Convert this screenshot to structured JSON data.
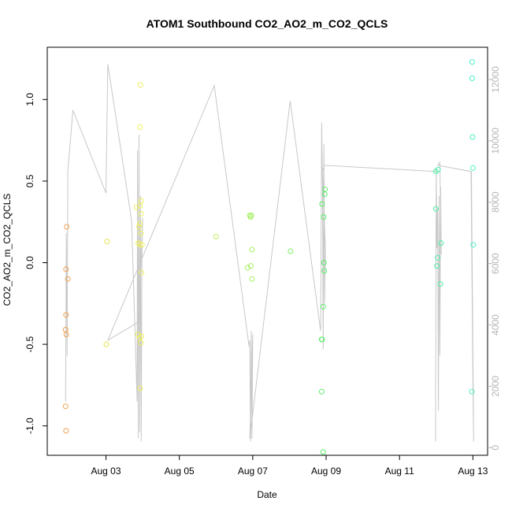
{
  "chart_data": {
    "type": "scatter",
    "title": "ATOM1 Southbound CO2_AO2_m_CO2_QCLS",
    "xlabel": "Date",
    "ylabel": "CO2_AO2_m_CO2_QCLS",
    "x_tick_labels": [
      "Aug 03",
      "Aug 05",
      "Aug 07",
      "Aug 09",
      "Aug 11",
      "Aug 13"
    ],
    "x_tick_values": [
      3,
      5,
      7,
      9,
      11,
      13
    ],
    "xlim": [
      1.4,
      13.4
    ],
    "y_tick_labels": [
      "-1.0",
      "-0.5",
      "0.0",
      "0.5",
      "1.0"
    ],
    "y_tick_values": [
      -1.0,
      -0.5,
      0.0,
      0.5,
      1.0
    ],
    "ylim": [
      -1.18,
      1.32
    ],
    "y2_tick_labels": [
      "0",
      "2000",
      "4000",
      "6000",
      "8000",
      "10000",
      "12000"
    ],
    "y2_tick_values": [
      0,
      2000,
      4000,
      6000,
      8000,
      10000,
      12000
    ],
    "y2lim": [
      -250,
      13050
    ],
    "grid": false,
    "points": [
      {
        "x": 1.93,
        "y": 0.22,
        "color": "#f0a050"
      },
      {
        "x": 1.91,
        "y": -0.04,
        "color": "#f0a050"
      },
      {
        "x": 1.96,
        "y": -0.1,
        "color": "#f0a050"
      },
      {
        "x": 1.91,
        "y": -0.32,
        "color": "#f0a050"
      },
      {
        "x": 1.9,
        "y": -0.41,
        "color": "#f0a050"
      },
      {
        "x": 1.92,
        "y": -0.44,
        "color": "#f0a050"
      },
      {
        "x": 1.9,
        "y": -0.88,
        "color": "#f0a050"
      },
      {
        "x": 1.91,
        "y": -1.03,
        "color": "#f0a050"
      },
      {
        "x": 3.03,
        "y": 0.13,
        "color": "#e6e656"
      },
      {
        "x": 3.01,
        "y": -0.5,
        "color": "#e6e656"
      },
      {
        "x": 3.94,
        "y": 1.09,
        "color": "#f0f060"
      },
      {
        "x": 3.93,
        "y": 0.83,
        "color": "#f0f060"
      },
      {
        "x": 3.96,
        "y": 0.38,
        "color": "#f0f060"
      },
      {
        "x": 3.83,
        "y": 0.34,
        "color": "#f0f060"
      },
      {
        "x": 3.93,
        "y": 0.35,
        "color": "#f0f060"
      },
      {
        "x": 3.96,
        "y": 0.3,
        "color": "#f0f060"
      },
      {
        "x": 3.92,
        "y": 0.24,
        "color": "#f0f060"
      },
      {
        "x": 3.9,
        "y": 0.22,
        "color": "#f0f060"
      },
      {
        "x": 3.95,
        "y": 0.18,
        "color": "#f0f060"
      },
      {
        "x": 3.88,
        "y": 0.12,
        "color": "#f0f060"
      },
      {
        "x": 3.92,
        "y": 0.11,
        "color": "#f0f060"
      },
      {
        "x": 3.98,
        "y": 0.11,
        "color": "#f0f060"
      },
      {
        "x": 3.97,
        "y": -0.06,
        "color": "#f0f060"
      },
      {
        "x": 3.87,
        "y": -0.44,
        "color": "#f0f060"
      },
      {
        "x": 3.92,
        "y": -0.46,
        "color": "#f0f060"
      },
      {
        "x": 3.97,
        "y": -0.45,
        "color": "#f0f060"
      },
      {
        "x": 3.95,
        "y": -0.49,
        "color": "#f0f060"
      },
      {
        "x": 3.93,
        "y": -0.77,
        "color": "#f0f060"
      },
      {
        "x": 6.0,
        "y": 0.16,
        "color": "#bef060"
      },
      {
        "x": 6.92,
        "y": 0.29,
        "color": "#a4f060"
      },
      {
        "x": 6.96,
        "y": 0.29,
        "color": "#a4f060"
      },
      {
        "x": 6.94,
        "y": 0.28,
        "color": "#a4f060"
      },
      {
        "x": 6.98,
        "y": 0.08,
        "color": "#a4f060"
      },
      {
        "x": 6.86,
        "y": -0.03,
        "color": "#a4f060"
      },
      {
        "x": 6.95,
        "y": -0.02,
        "color": "#a4f060"
      },
      {
        "x": 6.98,
        "y": -0.1,
        "color": "#a4f060"
      },
      {
        "x": 8.03,
        "y": 0.07,
        "color": "#80f068"
      },
      {
        "x": 8.97,
        "y": 0.45,
        "color": "#58ec68"
      },
      {
        "x": 8.96,
        "y": 0.42,
        "color": "#58ec68"
      },
      {
        "x": 8.89,
        "y": 0.36,
        "color": "#58ec68"
      },
      {
        "x": 8.93,
        "y": 0.28,
        "color": "#58ec68"
      },
      {
        "x": 8.94,
        "y": 0.0,
        "color": "#58ec68"
      },
      {
        "x": 8.95,
        "y": -0.05,
        "color": "#58ec68"
      },
      {
        "x": 8.92,
        "y": -0.27,
        "color": "#58ec68"
      },
      {
        "x": 8.88,
        "y": -0.47,
        "color": "#58ec68"
      },
      {
        "x": 8.89,
        "y": -0.47,
        "color": "#58ec68"
      },
      {
        "x": 8.88,
        "y": -0.79,
        "color": "#58ec68"
      },
      {
        "x": 8.92,
        "y": -1.16,
        "color": "#58ec68"
      },
      {
        "x": 11.99,
        "y": 0.56,
        "color": "#50f0a8"
      },
      {
        "x": 12.05,
        "y": 0.57,
        "color": "#50f0a8"
      },
      {
        "x": 11.99,
        "y": 0.33,
        "color": "#50f0a8"
      },
      {
        "x": 12.13,
        "y": 0.12,
        "color": "#50f0a8"
      },
      {
        "x": 12.04,
        "y": 0.03,
        "color": "#50f0a8"
      },
      {
        "x": 12.02,
        "y": -0.02,
        "color": "#50f0a8"
      },
      {
        "x": 12.11,
        "y": -0.13,
        "color": "#50f0a8"
      },
      {
        "x": 12.98,
        "y": 1.23,
        "color": "#48f0c8"
      },
      {
        "x": 12.98,
        "y": 1.13,
        "color": "#48f0c8"
      },
      {
        "x": 12.99,
        "y": 0.77,
        "color": "#48f0c8"
      },
      {
        "x": 13.0,
        "y": 0.58,
        "color": "#48f0c8"
      },
      {
        "x": 13.01,
        "y": 0.11,
        "color": "#48f0c8"
      },
      {
        "x": 12.97,
        "y": -0.79,
        "color": "#48f0c8"
      }
    ],
    "line_series": [
      {
        "axis": "right",
        "color": "#c8c8c8",
        "x": [
          1.9,
          1.92,
          1.94,
          1.96,
          2.1,
          3.0,
          3.05,
          3.7,
          3.85,
          3.86,
          3.88,
          3.9,
          3.92,
          3.94,
          3.96,
          3.98,
          4.0,
          3.9,
          3.05,
          5.95,
          6.9,
          6.92,
          6.94,
          6.96,
          6.98,
          7.0,
          6.92,
          8.02,
          8.85,
          8.88,
          8.9,
          8.92,
          8.94,
          8.96,
          8.98,
          8.9,
          8.95,
          12.0,
          11.98,
          12.0,
          12.02,
          12.04,
          12.06,
          12.08,
          12.1,
          12.12,
          12.14,
          12.1,
          12.04,
          12.95,
          13.0,
          13.02,
          12.96
        ],
        "y": [
          1500,
          7000,
          3000,
          9000,
          11000,
          8300,
          12500,
          7400,
          1500,
          9700,
          300,
          10200,
          500,
          8200,
          200,
          6200,
          7500,
          4100,
          3500,
          11800,
          3300,
          3500,
          200,
          3800,
          300,
          3700,
          300,
          11300,
          3800,
          10600,
          8600,
          3200,
          9900,
          4700,
          6500,
          9000,
          9200,
          9000,
          200,
          9100,
          6500,
          7800,
          1200,
          8200,
          3000,
          8500,
          6300,
          9300,
          9200,
          9000,
          2000,
          200,
          9000
        ]
      }
    ]
  }
}
